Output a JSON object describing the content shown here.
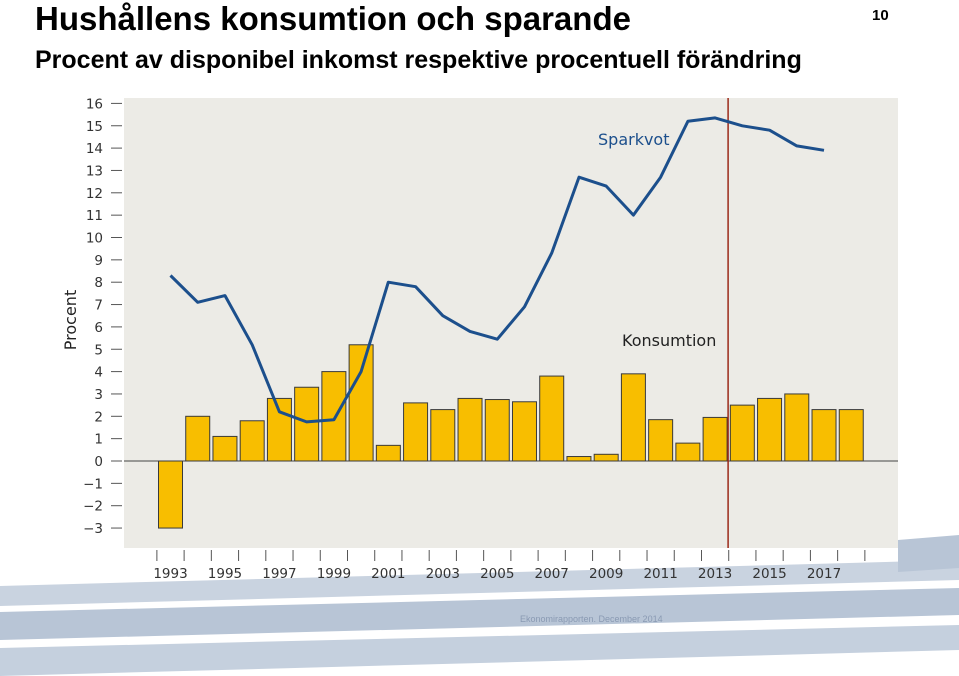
{
  "page": {
    "title": "Hushållens konsumtion och sparande",
    "subtitle": "Procent av disponibel inkomst respektive procentuell förändring",
    "page_number": "10",
    "footer": "Ekonomirapporten. December 2014"
  },
  "colors": {
    "plot_background": "#ecebe6",
    "bar_fill": "#f8be00",
    "bar_stroke": "#3a3a3a",
    "line": "#1c4f8c",
    "forecast_line": "#9b2a1a",
    "footer_bands": "#c5d0de"
  },
  "chart_data": {
    "type": "bar",
    "title": "Hushållens konsumtion och sparande",
    "subtitle": "Procent av disponibel inkomst respektive procentuell förändring",
    "ylabel": "Procent",
    "xlabel": "",
    "ylim": [
      -3,
      16
    ],
    "yticks": [
      16,
      15,
      14,
      13,
      12,
      11,
      10,
      9,
      8,
      7,
      6,
      5,
      4,
      3,
      2,
      1,
      0,
      -1,
      -2,
      -3
    ],
    "ytick_labels": [
      "16",
      "15",
      "14",
      "13",
      "12",
      "11",
      "10",
      "9",
      "8",
      "7",
      "6",
      "5",
      "4",
      "3",
      "2",
      "1",
      "0",
      "−1",
      "−2",
      "−3"
    ],
    "x_labels": [
      "1993",
      "1995",
      "1997",
      "1999",
      "2001",
      "2003",
      "2005",
      "2007",
      "2009",
      "2011",
      "2013",
      "2015",
      "2017"
    ],
    "grid": false,
    "forecast_start_year": 2013,
    "series": [
      {
        "name": "Konsumtion",
        "kind": "bar",
        "years": [
          1993,
          1994,
          1995,
          1996,
          1997,
          1998,
          1999,
          2000,
          2001,
          2002,
          2003,
          2004,
          2005,
          2006,
          2007,
          2008,
          2009,
          2010,
          2011,
          2012,
          2013,
          2014,
          2015,
          2016,
          2017,
          2018
        ],
        "values": [
          -3.0,
          2.0,
          1.1,
          1.8,
          2.8,
          3.3,
          4.0,
          5.2,
          0.7,
          2.6,
          2.3,
          2.8,
          2.75,
          2.65,
          3.8,
          0.2,
          0.3,
          3.9,
          1.85,
          0.8,
          1.95,
          2.5,
          2.8,
          3.0,
          2.3,
          2.3
        ]
      },
      {
        "name": "Sparkvot",
        "kind": "line",
        "years": [
          1993,
          1994,
          1995,
          1996,
          1997,
          1998,
          1999,
          2000,
          2001,
          2002,
          2003,
          2004,
          2005,
          2006,
          2007,
          2008,
          2009,
          2010,
          2011,
          2012,
          2013,
          2014,
          2015,
          2016,
          2017
        ],
        "values": [
          8.3,
          7.1,
          7.4,
          5.2,
          2.2,
          1.75,
          1.85,
          4.0,
          8.0,
          7.8,
          6.5,
          5.8,
          5.45,
          6.9,
          9.3,
          12.7,
          12.3,
          11.0,
          12.7,
          15.2,
          15.35,
          15.0,
          14.8,
          14.1,
          13.9
        ]
      }
    ],
    "annotations": [
      {
        "text": "Sparkvot",
        "series": "Sparkvot"
      },
      {
        "text": "Konsumtion",
        "series": "Konsumtion"
      }
    ]
  }
}
